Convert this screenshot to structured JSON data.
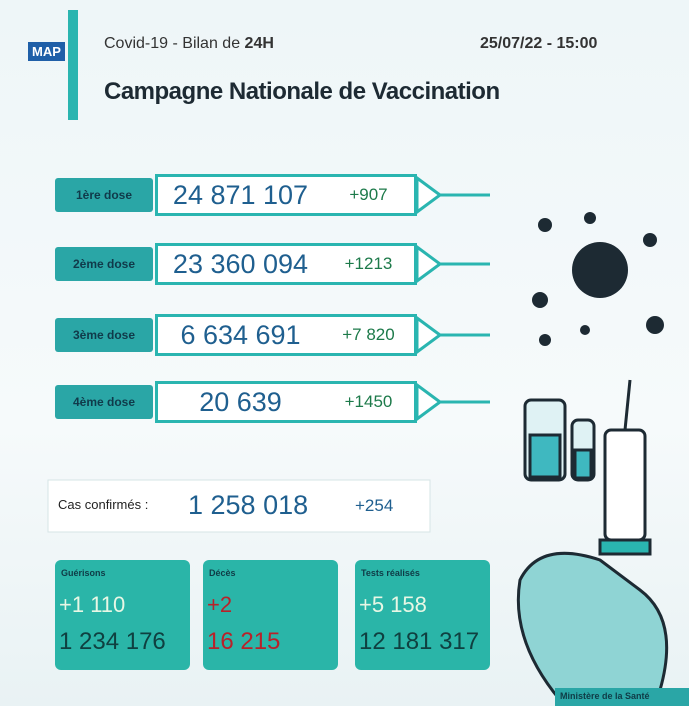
{
  "header": {
    "logo": "MAP",
    "subject": "Covid-19",
    "separator": "-",
    "report": "Bilan de",
    "period": "24H",
    "datetime": "25/07/22 - 15:00",
    "title": "Campagne Nationale de Vaccination"
  },
  "doses": [
    {
      "label": "1ère dose",
      "total": "24 871 107",
      "new": "+907"
    },
    {
      "label": "2ème dose",
      "total": "23 360 094",
      "new": "+1213"
    },
    {
      "label": "3ème dose",
      "total": "6 634 691",
      "new": "+7 820"
    },
    {
      "label": "4ème dose",
      "total": "20 639",
      "new": "+1450"
    }
  ],
  "cases": {
    "label": "Cas confirmés :",
    "total": "1 258 018",
    "new": "+254"
  },
  "cards": [
    {
      "label": "Guérisons",
      "new": "+1 110",
      "total": "1 234 176"
    },
    {
      "label": "Décès",
      "new": "+2",
      "total": "16 215"
    },
    {
      "label": "Tests réalisés",
      "new": "+5 158",
      "total": "12 181 317"
    }
  ],
  "footer": {
    "ministry": "Ministère de la Santé"
  }
}
